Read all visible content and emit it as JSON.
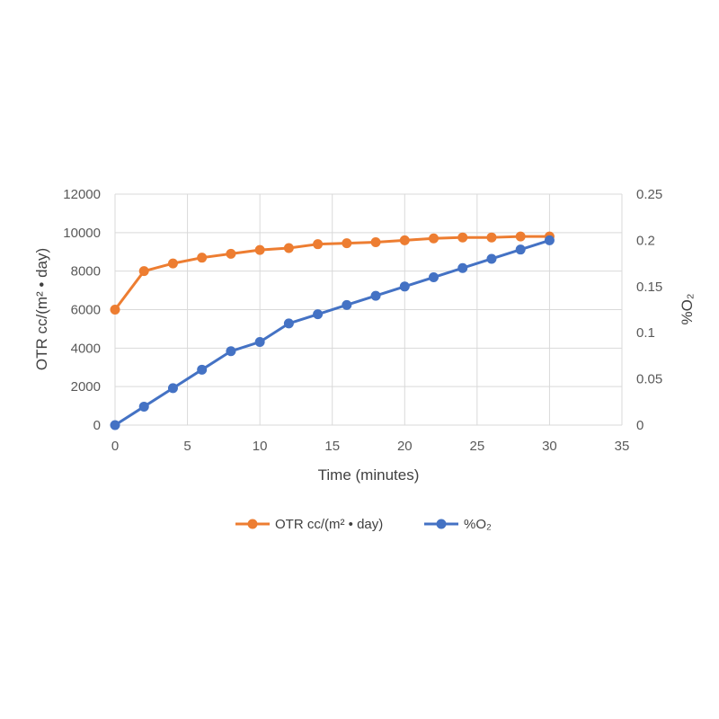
{
  "chart_data": {
    "type": "line",
    "x": [
      0,
      2,
      4,
      6,
      8,
      10,
      12,
      14,
      16,
      18,
      20,
      22,
      24,
      26,
      28,
      30
    ],
    "series": [
      {
        "name": "OTR cc/(m² • day)",
        "axis": "left",
        "color": "#ED7D31",
        "values": [
          6000,
          8000,
          8400,
          8700,
          8900,
          9100,
          9200,
          9400,
          9450,
          9500,
          9600,
          9700,
          9750,
          9750,
          9800,
          9800
        ]
      },
      {
        "name": "%O₂",
        "axis": "right",
        "color": "#4472C4",
        "values": [
          0,
          0.02,
          0.04,
          0.06,
          0.08,
          0.09,
          0.11,
          0.12,
          0.13,
          0.14,
          0.15,
          0.16,
          0.17,
          0.18,
          0.19,
          0.2
        ]
      }
    ],
    "xlabel": "Time (minutes)",
    "ylabel_left": "OTR  cc/(m² • day)",
    "ylabel_right": "%O₂",
    "xlim": [
      0,
      35
    ],
    "ylim_left": [
      0,
      12000
    ],
    "ylim_right": [
      0,
      0.25
    ],
    "xticks": [
      "0",
      "5",
      "10",
      "15",
      "20",
      "25",
      "30",
      "35"
    ],
    "yticks_left": [
      "0",
      "2000",
      "4000",
      "6000",
      "8000",
      "10000",
      "12000"
    ],
    "yticks_right": [
      "0",
      "0.05",
      "0.1",
      "0.15",
      "0.2",
      "0.25"
    ],
    "grid": true,
    "legend_position": "bottom"
  }
}
